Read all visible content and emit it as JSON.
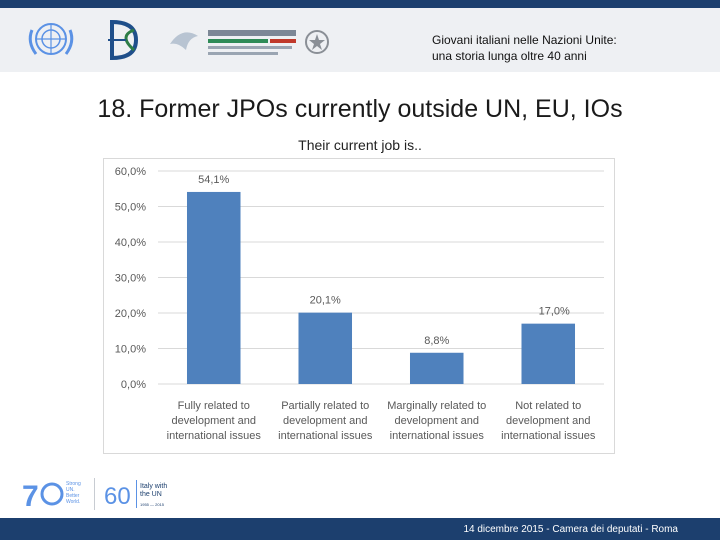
{
  "header": {
    "line1": "Giovani italiani nelle Nazioni Unite:",
    "line2": "una storia lunga oltre 40 anni",
    "logos": [
      "un-emblem-icon",
      "dae-monogram-icon",
      "cooperazione-italiana-logo",
      "italian-republic-emblem-icon"
    ]
  },
  "slide": {
    "title": "18. Former JPOs currently outside UN, EU, IOs"
  },
  "chart_data": {
    "type": "bar",
    "title": "Their current job is..",
    "categories": [
      [
        "Fully related to",
        "development and",
        "international issues"
      ],
      [
        "Partially related to",
        "development and",
        "international issues"
      ],
      [
        "Marginally related to",
        "development and",
        "international issues"
      ],
      [
        "Not related to",
        "development and",
        "international issues"
      ]
    ],
    "values": [
      54.1,
      20.1,
      8.8,
      17.0
    ],
    "value_labels": [
      "54,1%",
      "20,1%",
      "8,8%",
      "17,0%"
    ],
    "yticks": [
      "0,0%",
      "10,0%",
      "20,0%",
      "30,0%",
      "40,0%",
      "50,0%",
      "60,0%"
    ],
    "ylim": [
      0,
      60
    ],
    "xlabel": "",
    "ylabel": "",
    "grid": true,
    "bar_color": "#4f81bd"
  },
  "footer": {
    "text": "14 dicembre 2015 - Camera dei deputati - Roma",
    "un70_tagline": [
      "Strong",
      "UN.",
      "Better",
      "World."
    ],
    "italy60_number": "60",
    "italy60_text": [
      "Italy with",
      "the UN"
    ],
    "italy60_years": "1955 — 2015"
  },
  "colors": {
    "brand_dark": "#1c3f6e",
    "header_bg": "#eef0f3",
    "un_blue": "#5b92e5"
  }
}
